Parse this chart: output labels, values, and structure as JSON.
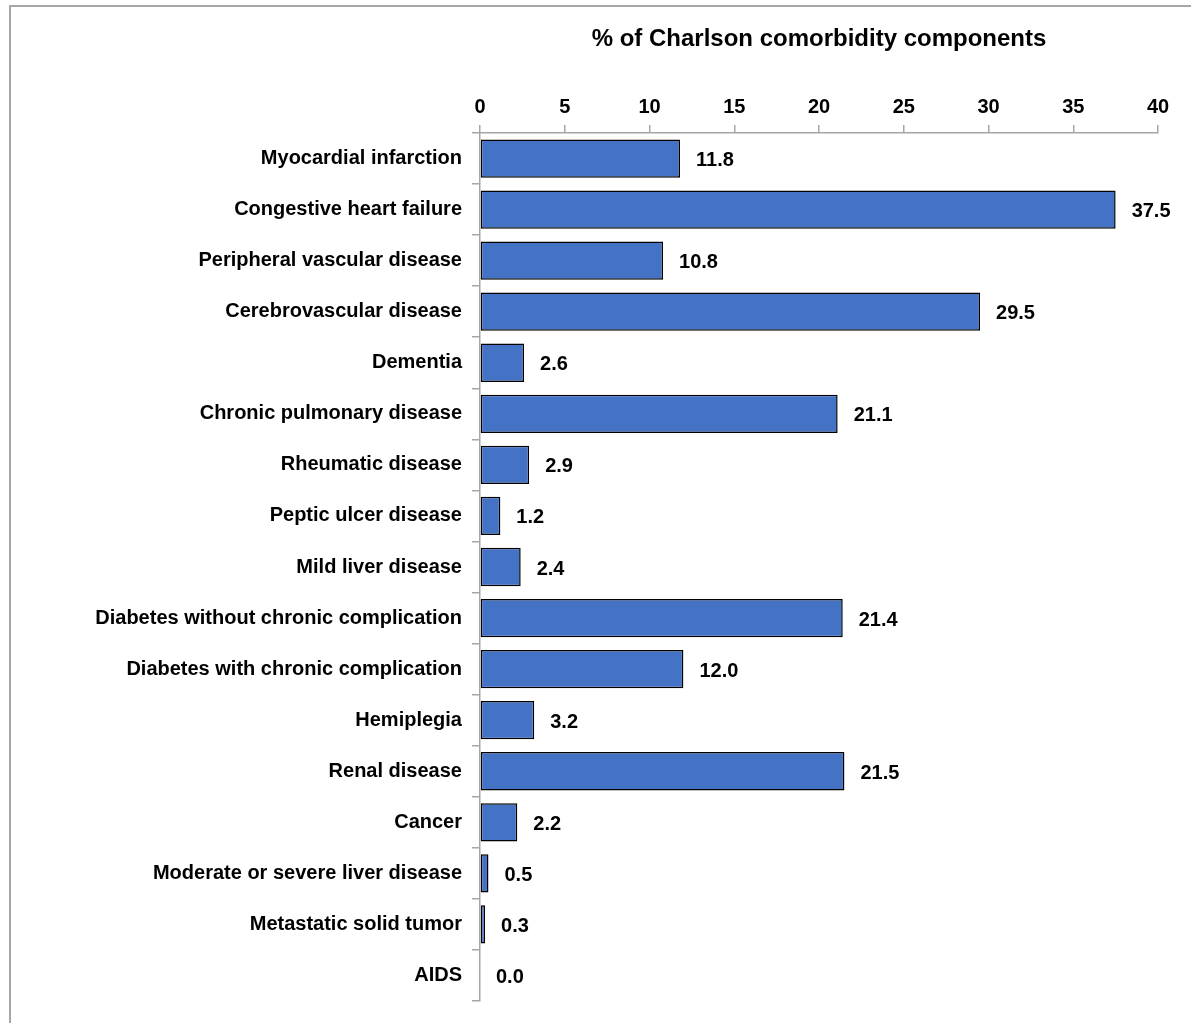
{
  "chart_data": {
    "type": "bar",
    "orientation": "horizontal",
    "xlabel": "% of Charlson comorbidity components",
    "categories": [
      "Myocardial infarction",
      "Congestive heart failure",
      "Peripheral vascular disease",
      "Cerebrovascular disease",
      "Dementia",
      "Chronic pulmonary disease",
      "Rheumatic disease",
      "Peptic ulcer disease",
      "Mild liver disease",
      "Diabetes without chronic complication",
      "Diabetes with chronic complication",
      "Hemiplegia",
      "Renal disease",
      "Cancer",
      "Moderate or severe liver disease",
      "Metastatic solid tumor",
      "AIDS"
    ],
    "values": [
      11.8,
      37.5,
      10.8,
      29.5,
      2.6,
      21.1,
      2.9,
      1.2,
      2.4,
      21.4,
      12.0,
      3.2,
      21.5,
      2.2,
      0.5,
      0.3,
      0.0
    ],
    "value_labels": [
      "11.8",
      "37.5",
      "10.8",
      "29.5",
      "2.6",
      "21.1",
      "2.9",
      "1.2",
      "2.4",
      "21.4",
      "12.0",
      "3.2",
      "21.5",
      "2.2",
      "0.5",
      "0.3",
      "0.0"
    ],
    "color": "#4472c4",
    "xlim": [
      0,
      40
    ],
    "xticks": [
      0,
      5,
      10,
      15,
      20,
      25,
      30,
      35,
      40
    ]
  }
}
